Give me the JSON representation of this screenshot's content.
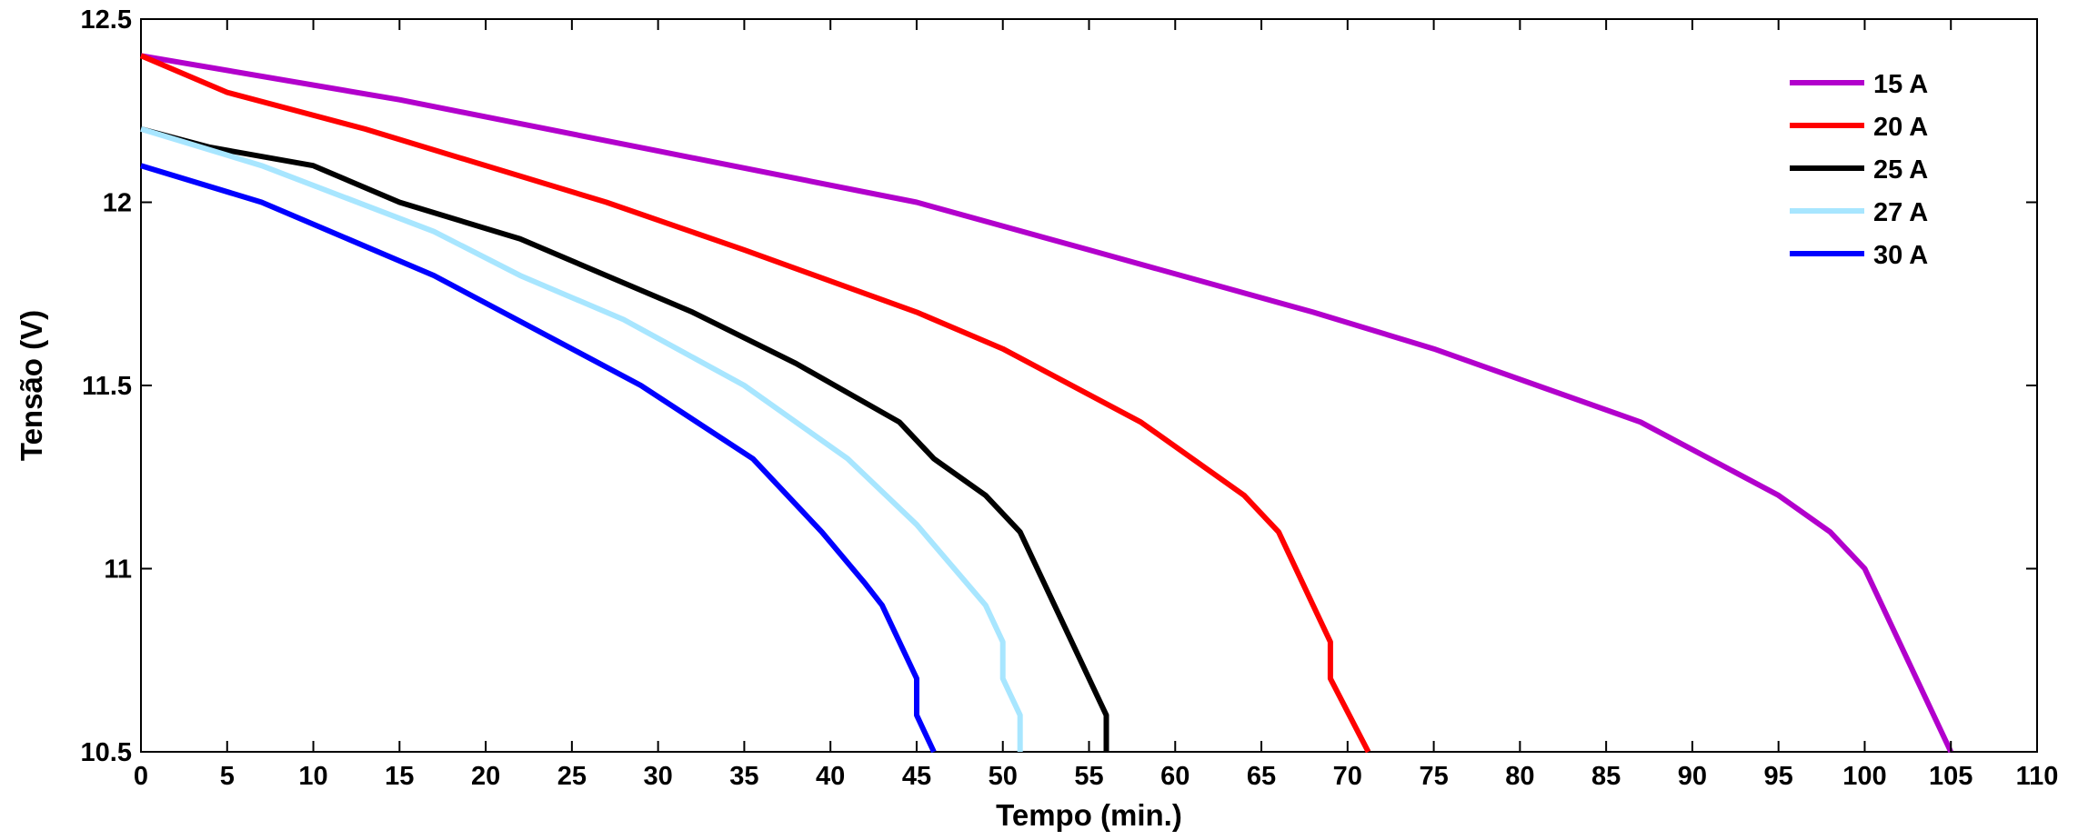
{
  "chart_data": {
    "type": "line",
    "xlabel": "Tempo (min.)",
    "ylabel": "Tensão (V)",
    "xlim": [
      0,
      110
    ],
    "ylim": [
      10.5,
      12.5
    ],
    "xticks": [
      0,
      5,
      10,
      15,
      20,
      25,
      30,
      35,
      40,
      45,
      50,
      55,
      60,
      65,
      70,
      75,
      80,
      85,
      90,
      95,
      100,
      105,
      110
    ],
    "xtick_labels": [
      "0",
      "5",
      "10",
      "15",
      "20",
      "25",
      "30",
      "35",
      "40",
      "45",
      "50",
      "55",
      "60",
      "65",
      "70",
      "75",
      "80",
      "85",
      "90",
      "95",
      "100",
      "105",
      "110"
    ],
    "yticks": [
      10.5,
      11,
      11.5,
      12,
      12.5
    ],
    "ytick_labels": [
      "10.5",
      "11",
      "11.5",
      "12",
      "12.5"
    ],
    "grid": false,
    "legend_position": "top-right",
    "series": [
      {
        "name": "15 A",
        "color": "#b200cc",
        "points": [
          [
            0,
            12.4
          ],
          [
            15,
            12.28
          ],
          [
            30,
            12.14
          ],
          [
            45,
            12.0
          ],
          [
            55,
            11.87
          ],
          [
            68,
            11.7
          ],
          [
            75,
            11.6
          ],
          [
            81,
            11.5
          ],
          [
            87,
            11.4
          ],
          [
            91,
            11.3
          ],
          [
            95,
            11.2
          ],
          [
            98,
            11.1
          ],
          [
            100,
            11.0
          ],
          [
            102,
            10.8
          ],
          [
            105,
            10.5
          ]
        ]
      },
      {
        "name": "20 A",
        "color": "#ff0000",
        "points": [
          [
            0,
            12.4
          ],
          [
            5,
            12.3
          ],
          [
            13,
            12.2
          ],
          [
            27,
            12.0
          ],
          [
            35,
            11.87
          ],
          [
            45,
            11.7
          ],
          [
            50,
            11.6
          ],
          [
            58,
            11.4
          ],
          [
            64,
            11.2
          ],
          [
            66,
            11.1
          ],
          [
            68,
            10.9
          ],
          [
            69,
            10.8
          ],
          [
            69,
            10.7
          ],
          [
            71.2,
            10.5
          ]
        ]
      },
      {
        "name": "25 A",
        "color": "#000000",
        "points": [
          [
            0,
            12.2
          ],
          [
            4,
            12.15
          ],
          [
            10,
            12.1
          ],
          [
            15,
            12.0
          ],
          [
            22,
            11.9
          ],
          [
            32,
            11.7
          ],
          [
            38,
            11.56
          ],
          [
            44,
            11.4
          ],
          [
            46,
            11.3
          ],
          [
            49,
            11.2
          ],
          [
            51,
            11.1
          ],
          [
            53,
            10.9
          ],
          [
            55,
            10.7
          ],
          [
            56,
            10.6
          ],
          [
            56,
            10.5
          ]
        ]
      },
      {
        "name": "27 A",
        "color": "#a8e6ff",
        "points": [
          [
            0,
            12.2
          ],
          [
            7,
            12.1
          ],
          [
            17,
            11.92
          ],
          [
            22,
            11.8
          ],
          [
            28,
            11.68
          ],
          [
            35,
            11.5
          ],
          [
            41,
            11.3
          ],
          [
            45,
            11.12
          ],
          [
            49,
            10.9
          ],
          [
            50,
            10.8
          ],
          [
            50,
            10.7
          ],
          [
            51,
            10.6
          ],
          [
            51,
            10.5
          ]
        ]
      },
      {
        "name": "30 A",
        "color": "#0000ff",
        "points": [
          [
            0,
            12.1
          ],
          [
            7,
            12.0
          ],
          [
            17,
            11.8
          ],
          [
            29,
            11.5
          ],
          [
            35.5,
            11.3
          ],
          [
            39.5,
            11.1
          ],
          [
            42,
            10.96
          ],
          [
            43,
            10.9
          ],
          [
            45,
            10.7
          ],
          [
            45,
            10.6
          ],
          [
            46,
            10.5
          ]
        ]
      }
    ]
  }
}
